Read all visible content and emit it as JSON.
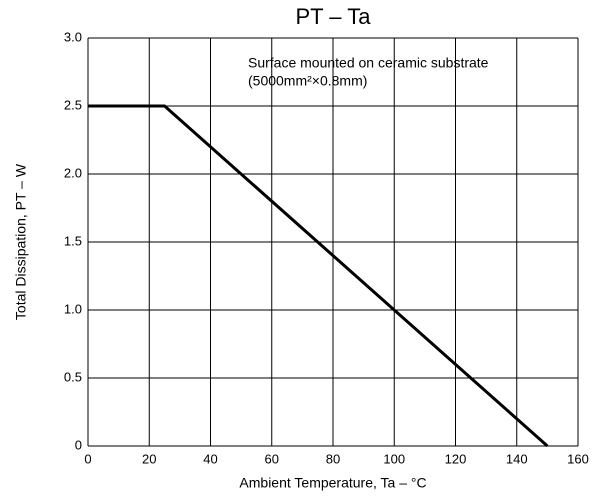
{
  "chart_data": {
    "type": "line",
    "title": "PT – Ta",
    "annotations": [
      "Surface mounted on ceramic substrate",
      "(5000mm²×0.8mm)"
    ],
    "x_label": "Ambient Temperature, Ta – °C",
    "y_label": "Total Dissipation, PT – W",
    "x": [
      0,
      25,
      150
    ],
    "series": [
      {
        "color": "#000000",
        "values": [
          2.5,
          2.5,
          0
        ]
      }
    ],
    "xlim": [
      0,
      160
    ],
    "xticks": [
      0,
      20,
      40,
      60,
      80,
      100,
      120,
      140,
      160
    ],
    "ylim": [
      0,
      3.0
    ],
    "yticks": [
      0,
      0.5,
      {
        "value": 1.0,
        "label": "1.0"
      },
      1.5,
      {
        "value": 2.0,
        "label": "2.0"
      },
      2.5,
      {
        "value": 3.0,
        "label": "3.0"
      }
    ],
    "grid": true
  }
}
